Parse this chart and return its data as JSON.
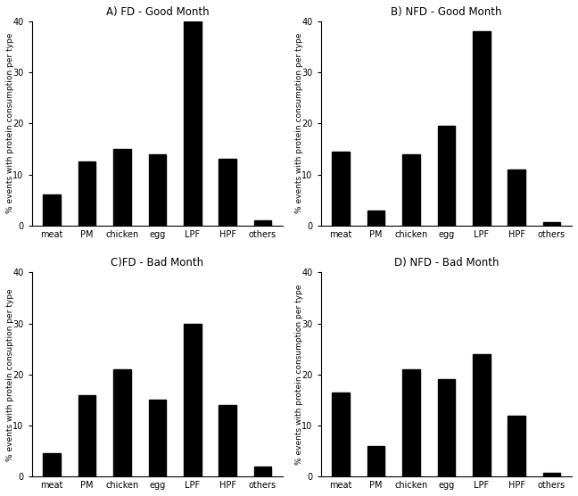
{
  "subplots": [
    {
      "title": "A) FD - Good Month",
      "categories": [
        "meat",
        "PM",
        "chicken",
        "egg",
        "LPF",
        "HPF",
        "others"
      ],
      "values": [
        6,
        12.5,
        15,
        14,
        40,
        13,
        1
      ],
      "ylabel": "% events with protein consumption per type"
    },
    {
      "title": "B) NFD - Good Month",
      "categories": [
        "meat",
        "PM",
        "chicken",
        "egg",
        "LPF",
        "HPF",
        "others"
      ],
      "values": [
        14.5,
        3,
        14,
        19.5,
        38,
        11,
        0.7
      ],
      "ylabel": "% events with protein consumption per type"
    },
    {
      "title": "C)FD - Bad Month",
      "categories": [
        "meat",
        "PM",
        "chicken",
        "egg",
        "LPF",
        "HPF",
        "others"
      ],
      "values": [
        4.5,
        16,
        21,
        15,
        30,
        14,
        2
      ],
      "ylabel": "% events with protein consuption per type"
    },
    {
      "title": "D) NFD - Bad Month",
      "categories": [
        "meat",
        "PM",
        "chicken",
        "egg",
        "LPF",
        "HPF",
        "others"
      ],
      "values": [
        16.5,
        6,
        21,
        19,
        24,
        12,
        0.8
      ],
      "ylabel": "% events with protein consumption per type"
    }
  ],
  "ylim": [
    0,
    40
  ],
  "yticks": [
    0,
    10,
    20,
    30,
    40
  ],
  "bar_color": "#000000",
  "background_color": "#ffffff",
  "title_fontsize": 8.5,
  "tick_fontsize": 7,
  "ylabel_fontsize": 6.5
}
